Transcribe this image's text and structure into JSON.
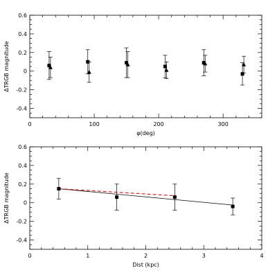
{
  "chart_data": [
    {
      "type": "scatter",
      "xlabel": "φ(deg)",
      "ylabel": "ΔTRGB magnitude",
      "xlim": [
        0,
        360
      ],
      "ylim": [
        -0.5,
        0.6
      ],
      "xticks": [
        0,
        100,
        200,
        300
      ],
      "xtick_labels": [
        "0",
        "100",
        "200",
        "300"
      ],
      "yticks": [
        -0.4,
        -0.2,
        0,
        0.2,
        0.4,
        0.6
      ],
      "ytick_labels": [
        "-0.4",
        "-0.2",
        "0",
        "0.2",
        "0.4",
        "0.6"
      ],
      "grid": false,
      "series": [
        {
          "marker": "square",
          "x": [
            30,
            90,
            150,
            210,
            270,
            330
          ],
          "y": [
            0.06,
            0.1,
            0.09,
            0.05,
            0.09,
            -0.03
          ],
          "err": [
            0.15,
            0.13,
            0.16,
            0.12,
            0.14,
            0.12
          ]
        },
        {
          "marker": "triangle",
          "x": [
            30,
            90,
            150,
            210,
            270,
            330
          ],
          "y": [
            0.04,
            -0.01,
            0.07,
            0.01,
            0.08,
            0.07
          ],
          "err": [
            0.11,
            0.11,
            0.14,
            0.09,
            0.09,
            0.09
          ]
        }
      ]
    },
    {
      "type": "scatter",
      "xlabel": "Dist (kpc)",
      "ylabel": "ΔTRGB magnitude",
      "xlim": [
        0,
        4
      ],
      "ylim": [
        -0.5,
        0.6
      ],
      "xticks": [
        0,
        1,
        2,
        3,
        4
      ],
      "xtick_labels": [
        "0",
        "1",
        "2",
        "3",
        "4"
      ],
      "yticks": [
        -0.4,
        -0.2,
        0,
        0.2,
        0.4,
        0.6
      ],
      "ytick_labels": [
        "-0.4",
        "-0.2",
        "0",
        "0.2",
        "0.4",
        "0.6"
      ],
      "grid": false,
      "series": [
        {
          "marker": "square",
          "x": [
            0.5,
            1.5,
            2.5,
            3.5
          ],
          "y": [
            0.15,
            0.06,
            0.06,
            -0.04
          ],
          "err": [
            0.11,
            0.14,
            0.14,
            0.09
          ]
        }
      ],
      "fits": [
        {
          "style": "solid",
          "color": "#000000",
          "x": [
            0.5,
            3.5
          ],
          "y": [
            0.15,
            -0.025
          ]
        },
        {
          "style": "dashed",
          "color": "#e0201a",
          "x": [
            0.5,
            2.5
          ],
          "y": [
            0.15,
            0.075
          ]
        }
      ]
    }
  ]
}
